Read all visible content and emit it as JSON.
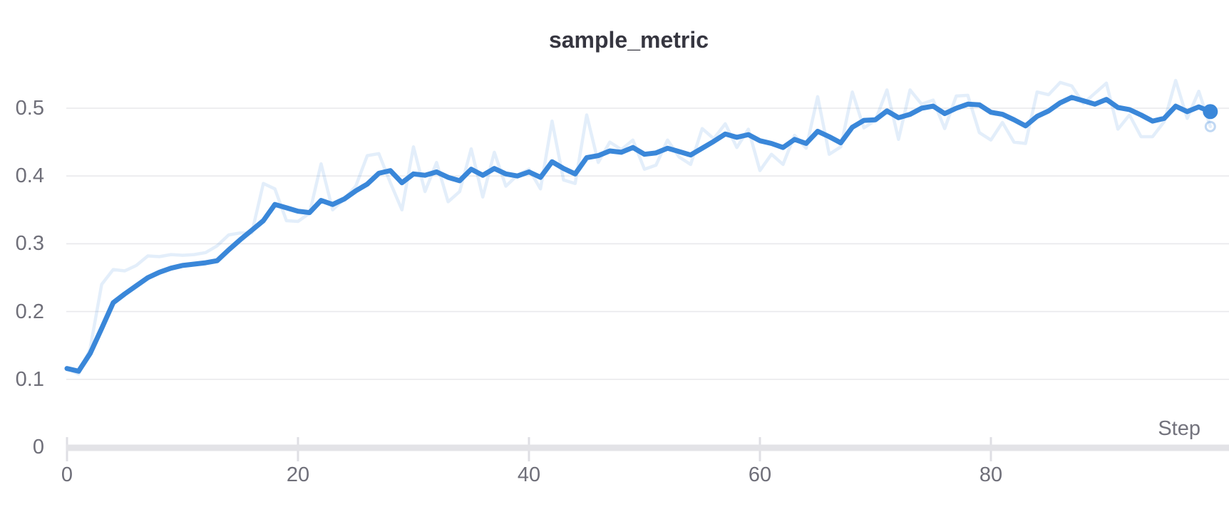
{
  "chart_data": {
    "type": "line",
    "title": "sample_metric",
    "xlabel": "Step",
    "ylabel": "",
    "xlim": [
      0,
      100
    ],
    "ylim": [
      0,
      0.56
    ],
    "x_start": 0,
    "x_step": 1,
    "n_points": 100,
    "grid": "horizontal",
    "legend": "none",
    "x_ticks": [
      {
        "v": 0,
        "label": "0"
      },
      {
        "v": 20,
        "label": "20"
      },
      {
        "v": 40,
        "label": "40"
      },
      {
        "v": 60,
        "label": "60"
      },
      {
        "v": 80,
        "label": "80"
      }
    ],
    "y_ticks": [
      {
        "v": 0,
        "label": "0"
      },
      {
        "v": 0.1,
        "label": "0.1"
      },
      {
        "v": 0.2,
        "label": "0.2"
      },
      {
        "v": 0.3,
        "label": "0.3"
      },
      {
        "v": 0.4,
        "label": "0.4"
      },
      {
        "v": 0.5,
        "label": "0.5"
      }
    ],
    "series": [
      {
        "name": "raw",
        "role": "original-unsmoothed-line",
        "color": "#3a87d9",
        "opacity": 0.14,
        "width": 4.5,
        "values": [
          0.116,
          0.108,
          0.145,
          0.24,
          0.262,
          0.26,
          0.268,
          0.282,
          0.281,
          0.284,
          0.283,
          0.284,
          0.287,
          0.297,
          0.313,
          0.316,
          0.316,
          0.389,
          0.381,
          0.334,
          0.333,
          0.345,
          0.418,
          0.35,
          0.366,
          0.385,
          0.43,
          0.433,
          0.39,
          0.35,
          0.443,
          0.377,
          0.42,
          0.362,
          0.377,
          0.44,
          0.369,
          0.435,
          0.385,
          0.401,
          0.41,
          0.381,
          0.481,
          0.394,
          0.389,
          0.49,
          0.42,
          0.45,
          0.439,
          0.453,
          0.41,
          0.416,
          0.453,
          0.428,
          0.417,
          0.47,
          0.455,
          0.477,
          0.442,
          0.469,
          0.408,
          0.432,
          0.417,
          0.46,
          0.441,
          0.517,
          0.432,
          0.443,
          0.524,
          0.471,
          0.482,
          0.527,
          0.454,
          0.527,
          0.506,
          0.512,
          0.47,
          0.518,
          0.519,
          0.464,
          0.453,
          0.479,
          0.45,
          0.448,
          0.524,
          0.52,
          0.538,
          0.533,
          0.507,
          0.522,
          0.537,
          0.469,
          0.49,
          0.458,
          0.458,
          0.48,
          0.541,
          0.485,
          0.525,
          0.473
        ]
      },
      {
        "name": "smoothed",
        "role": "smoothed-main-line",
        "color": "#3a87d9",
        "opacity": 1,
        "width": 7,
        "values": [
          0.116,
          0.112,
          0.138,
          0.175,
          0.213,
          0.226,
          0.238,
          0.25,
          0.258,
          0.264,
          0.268,
          0.27,
          0.272,
          0.275,
          0.291,
          0.306,
          0.32,
          0.334,
          0.358,
          0.353,
          0.348,
          0.346,
          0.364,
          0.358,
          0.366,
          0.378,
          0.388,
          0.404,
          0.408,
          0.39,
          0.403,
          0.401,
          0.406,
          0.398,
          0.393,
          0.41,
          0.401,
          0.411,
          0.403,
          0.4,
          0.406,
          0.398,
          0.421,
          0.411,
          0.403,
          0.427,
          0.43,
          0.437,
          0.435,
          0.442,
          0.432,
          0.434,
          0.441,
          0.436,
          0.431,
          0.441,
          0.451,
          0.462,
          0.457,
          0.461,
          0.452,
          0.448,
          0.442,
          0.454,
          0.448,
          0.466,
          0.458,
          0.449,
          0.472,
          0.482,
          0.483,
          0.496,
          0.486,
          0.491,
          0.5,
          0.503,
          0.492,
          0.5,
          0.506,
          0.505,
          0.494,
          0.491,
          0.483,
          0.474,
          0.488,
          0.496,
          0.508,
          0.516,
          0.511,
          0.506,
          0.513,
          0.501,
          0.498,
          0.49,
          0.481,
          0.485,
          0.503,
          0.495,
          0.502,
          0.495
        ]
      }
    ],
    "end_markers": [
      {
        "series": "smoothed",
        "x": 99,
        "y": 0.495,
        "style": "filled-dot"
      },
      {
        "series": "raw",
        "x": 99,
        "y": 0.473,
        "style": "open-ring"
      }
    ],
    "colors": {
      "line": "#3a87d9",
      "gridline": "#e9e9ec",
      "axis_bar": "#e3e3e7",
      "axis_tick": "#dfdfe4",
      "title_text": "#363640",
      "tick_text": "#6f6f79",
      "background": "#ffffff"
    }
  }
}
